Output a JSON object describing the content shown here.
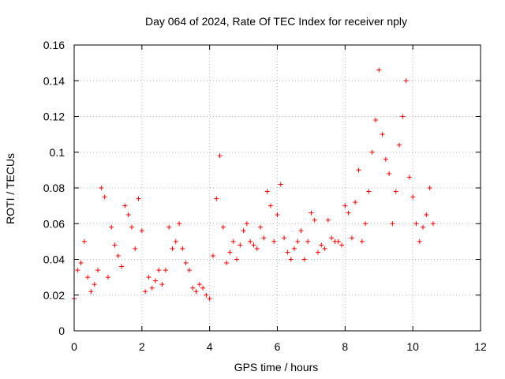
{
  "chart_data": {
    "type": "scatter",
    "title": "Day 064 of 2024, Rate Of TEC Index for receiver nply",
    "xlabel": "GPS time / hours",
    "ylabel": "ROTI / TECUs",
    "xlim": [
      0,
      12
    ],
    "ylim": [
      0,
      0.16
    ],
    "x_ticks": [
      0,
      2,
      4,
      6,
      8,
      10,
      12
    ],
    "x_tick_labels": [
      "0",
      "2",
      "4",
      "6",
      "8",
      "10",
      "12"
    ],
    "y_ticks": [
      0,
      0.02,
      0.04,
      0.06,
      0.08,
      0.1,
      0.12,
      0.14,
      0.16
    ],
    "y_tick_labels": [
      "0",
      "0.02",
      "0.04",
      "0.06",
      "0.08",
      "0.1",
      "0.12",
      "0.14",
      "0.16"
    ],
    "grid": true,
    "marker": "plus",
    "series": [
      {
        "name": "ROTI",
        "color": "#ff0000",
        "x": [
          0.0,
          0.1,
          0.2,
          0.3,
          0.4,
          0.5,
          0.6,
          0.7,
          0.8,
          0.9,
          1.0,
          1.1,
          1.2,
          1.3,
          1.4,
          1.5,
          1.6,
          1.7,
          1.8,
          1.9,
          2.0,
          2.1,
          2.2,
          2.3,
          2.4,
          2.5,
          2.6,
          2.7,
          2.8,
          2.9,
          3.0,
          3.1,
          3.2,
          3.3,
          3.4,
          3.5,
          3.6,
          3.7,
          3.8,
          3.9,
          4.0,
          4.1,
          4.2,
          4.3,
          4.4,
          4.5,
          4.6,
          4.7,
          4.8,
          4.9,
          5.0,
          5.1,
          5.2,
          5.3,
          5.4,
          5.5,
          5.6,
          5.7,
          5.8,
          5.9,
          6.0,
          6.1,
          6.2,
          6.3,
          6.4,
          6.5,
          6.6,
          6.7,
          6.8,
          6.9,
          7.0,
          7.1,
          7.2,
          7.3,
          7.4,
          7.5,
          7.6,
          7.7,
          7.8,
          7.9,
          8.0,
          8.1,
          8.2,
          8.3,
          8.4,
          8.5,
          8.6,
          8.7,
          8.8,
          8.9,
          9.0,
          9.1,
          9.2,
          9.3,
          9.4,
          9.5,
          9.6,
          9.7,
          9.8,
          9.9,
          10.0,
          10.1,
          10.2,
          10.3,
          10.4,
          10.5,
          10.6
        ],
        "y": [
          0.018,
          0.034,
          0.038,
          0.05,
          0.03,
          0.022,
          0.026,
          0.034,
          0.08,
          0.075,
          0.03,
          0.058,
          0.048,
          0.042,
          0.036,
          0.07,
          0.065,
          0.058,
          0.046,
          0.074,
          0.056,
          0.022,
          0.03,
          0.024,
          0.028,
          0.034,
          0.026,
          0.034,
          0.058,
          0.046,
          0.05,
          0.06,
          0.046,
          0.038,
          0.034,
          0.024,
          0.022,
          0.026,
          0.024,
          0.02,
          0.018,
          0.042,
          0.074,
          0.098,
          0.058,
          0.038,
          0.044,
          0.05,
          0.04,
          0.048,
          0.056,
          0.06,
          0.05,
          0.048,
          0.046,
          0.058,
          0.052,
          0.078,
          0.07,
          0.05,
          0.065,
          0.082,
          0.052,
          0.044,
          0.04,
          0.046,
          0.05,
          0.056,
          0.04,
          0.05,
          0.066,
          0.062,
          0.044,
          0.048,
          0.046,
          0.062,
          0.052,
          0.05,
          0.05,
          0.048,
          0.07,
          0.066,
          0.052,
          0.072,
          0.09,
          0.05,
          0.06,
          0.078,
          0.1,
          0.118,
          0.146,
          0.11,
          0.096,
          0.088,
          0.06,
          0.078,
          0.104,
          0.12,
          0.14,
          0.086,
          0.075,
          0.06,
          0.05,
          0.058,
          0.065,
          0.08,
          0.06
        ]
      }
    ]
  }
}
